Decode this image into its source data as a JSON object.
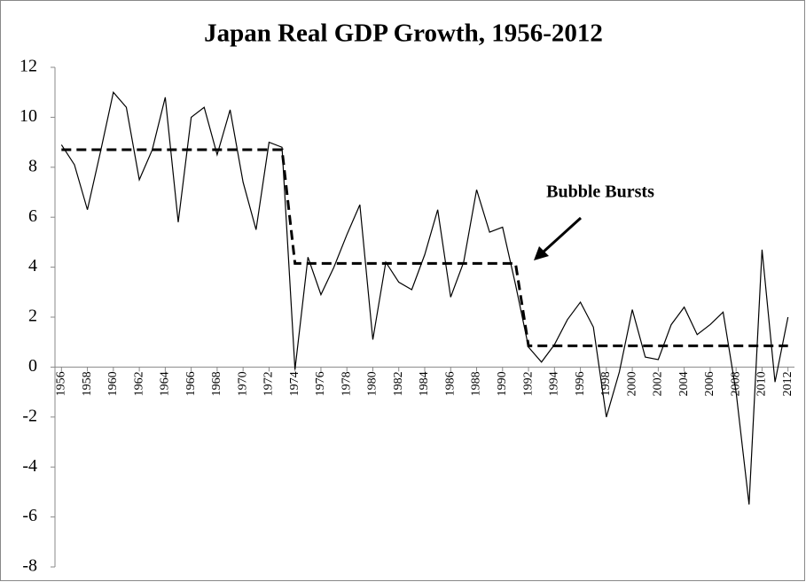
{
  "chart_data": {
    "type": "line",
    "title": "Japan Real GDP Growth, 1956-2012",
    "x": [
      1956,
      1957,
      1958,
      1959,
      1960,
      1961,
      1962,
      1963,
      1964,
      1965,
      1966,
      1967,
      1968,
      1969,
      1970,
      1971,
      1972,
      1973,
      1974,
      1975,
      1976,
      1977,
      1978,
      1979,
      1980,
      1981,
      1982,
      1983,
      1984,
      1985,
      1986,
      1987,
      1988,
      1989,
      1990,
      1991,
      1992,
      1993,
      1994,
      1995,
      1996,
      1997,
      1998,
      1999,
      2000,
      2001,
      2002,
      2003,
      2004,
      2005,
      2006,
      2007,
      2008,
      2009,
      2010,
      2011,
      2012
    ],
    "series": [
      {
        "color": "#000000",
        "values": [
          8.9,
          8.1,
          6.3,
          8.6,
          11.0,
          10.4,
          7.5,
          8.7,
          10.8,
          5.8,
          10.0,
          10.4,
          8.5,
          10.3,
          7.4,
          5.5,
          9.0,
          8.8,
          -0.1,
          4.4,
          2.9,
          4.0,
          5.3,
          6.5,
          1.1,
          4.2,
          3.4,
          3.1,
          4.5,
          6.3,
          2.8,
          4.2,
          7.1,
          5.4,
          5.6,
          3.3,
          0.8,
          0.2,
          0.9,
          1.9,
          2.6,
          1.6,
          -2.0,
          -0.2,
          2.3,
          0.4,
          0.3,
          1.7,
          2.4,
          1.3,
          1.7,
          2.2,
          -1.0,
          -5.5,
          4.7,
          -0.6,
          2.0
        ]
      },
      {
        "color": "#000000",
        "dashed": true,
        "values": [
          8.7,
          8.7,
          8.7,
          8.7,
          8.7,
          8.7,
          8.7,
          8.7,
          8.7,
          8.7,
          8.7,
          8.7,
          8.7,
          8.7,
          8.7,
          8.7,
          8.7,
          8.7,
          4.15,
          4.15,
          4.15,
          4.15,
          4.15,
          4.15,
          4.15,
          4.15,
          4.15,
          4.15,
          4.15,
          4.15,
          4.15,
          4.15,
          4.15,
          4.15,
          4.15,
          4.15,
          0.85,
          0.85,
          0.85,
          0.85,
          0.85,
          0.85,
          0.85,
          0.85,
          0.85,
          0.85,
          0.85,
          0.85,
          0.85,
          0.85,
          0.85,
          0.85,
          0.85,
          0.85,
          0.85,
          0.85,
          0.85
        ]
      }
    ],
    "annotation": "Bubble Bursts",
    "xlim": [
      1955.5,
      2012.5
    ],
    "xticks": [
      1956,
      1958,
      1960,
      1962,
      1964,
      1966,
      1968,
      1970,
      1972,
      1974,
      1976,
      1978,
      1980,
      1982,
      1984,
      1986,
      1988,
      1990,
      1992,
      1994,
      1996,
      1998,
      2000,
      2002,
      2004,
      2006,
      2008,
      2010,
      2012
    ],
    "ylim": [
      -8,
      12
    ],
    "yticks": [
      -8,
      -6,
      -4,
      -2,
      0,
      2,
      4,
      6,
      8,
      10,
      12
    ]
  }
}
